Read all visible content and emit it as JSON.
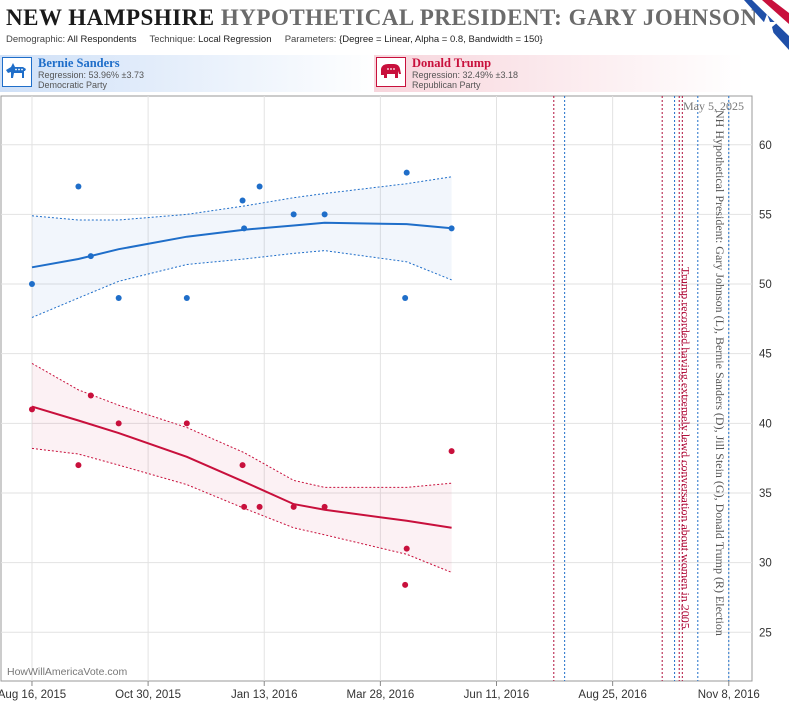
{
  "header": {
    "state": "NEW HAMPSHIRE",
    "subtitle": "HYPOTHETICAL PRESIDENT:  GARY JOHNSON",
    "demographic_label": "Demographic:",
    "demographic_value": "All Respondents",
    "technique_label": "Technique:",
    "technique_value": "Local Regression",
    "parameters_label": "Parameters:",
    "parameters_value": "{Degree = Linear, Alpha = 0.8, Bandwidth = 150}"
  },
  "candidates": [
    {
      "name": "Bernie Sanders",
      "regression": "Regression: 53.96% ±3.73",
      "party": "Democratic Party",
      "color": "#1f6ec9"
    },
    {
      "name": "Donald Trump",
      "regression": "Regression: 32.49% ±3.18",
      "party": "Republican Party",
      "color": "#c8103c"
    }
  ],
  "chart_data": {
    "type": "scatter",
    "date_label": "May 5, 2025",
    "vertical_title": "NH Hypothetical President: Gary Johnson (L), Bernie Sanders (D), Jill Stein (G), Donald Trump (R) Election",
    "event_annotation": "Trump recorded having extremely lewd conversation about women in 2005",
    "watermark": "HowWillAmericaVote.com",
    "x_ticks": [
      "Aug 16, 2015",
      "Oct 30, 2015",
      "Jan 13, 2016",
      "Mar 28, 2016",
      "Jun 11, 2016",
      "Aug 25, 2016",
      "Nov 8, 2016"
    ],
    "x_range": [
      "2015-07-27",
      "2016-11-23"
    ],
    "ylim": [
      21.5,
      63.5
    ],
    "y_ticks": [
      25,
      30,
      35,
      40,
      45,
      50,
      55,
      60
    ],
    "grid": true,
    "vlines": [
      {
        "date": "2016-07-18",
        "color": "#b0103c"
      },
      {
        "date": "2016-07-25",
        "color": "#1f6ec9"
      },
      {
        "date": "2016-09-26",
        "color": "#b0103c"
      },
      {
        "date": "2016-10-04",
        "color": "#1f6ec9"
      },
      {
        "date": "2016-10-07",
        "color": "#b0103c"
      },
      {
        "date": "2016-10-09",
        "color": "#b0103c"
      },
      {
        "date": "2016-10-19",
        "color": "#1f6ec9"
      },
      {
        "date": "2016-11-08",
        "color": "#1f6ec9"
      }
    ],
    "series": [
      {
        "name": "Bernie Sanders",
        "color": "#1f6ec9",
        "points": [
          {
            "x": "2015-08-16",
            "y": 50
          },
          {
            "x": "2015-09-15",
            "y": 57
          },
          {
            "x": "2015-09-23",
            "y": 52
          },
          {
            "x": "2015-10-11",
            "y": 49
          },
          {
            "x": "2015-11-24",
            "y": 49
          },
          {
            "x": "2015-12-30",
            "y": 56
          },
          {
            "x": "2015-12-31",
            "y": 54
          },
          {
            "x": "2016-01-10",
            "y": 57
          },
          {
            "x": "2016-02-01",
            "y": 55
          },
          {
            "x": "2016-02-21",
            "y": 55
          },
          {
            "x": "2016-04-13",
            "y": 49
          },
          {
            "x": "2016-04-14",
            "y": 58
          },
          {
            "x": "2016-05-13",
            "y": 54
          }
        ],
        "fit": [
          {
            "x": "2015-08-16",
            "y": 51.2,
            "lo": 47.6,
            "hi": 54.9
          },
          {
            "x": "2015-09-15",
            "y": 51.8,
            "lo": 49.0,
            "hi": 54.6
          },
          {
            "x": "2015-10-11",
            "y": 52.5,
            "lo": 50.2,
            "hi": 54.6
          },
          {
            "x": "2015-11-24",
            "y": 53.4,
            "lo": 51.4,
            "hi": 55.0
          },
          {
            "x": "2015-12-31",
            "y": 53.9,
            "lo": 51.8,
            "hi": 55.6
          },
          {
            "x": "2016-02-01",
            "y": 54.2,
            "lo": 52.2,
            "hi": 56.2
          },
          {
            "x": "2016-02-21",
            "y": 54.4,
            "lo": 52.4,
            "hi": 56.5
          },
          {
            "x": "2016-04-14",
            "y": 54.3,
            "lo": 51.6,
            "hi": 57.2
          },
          {
            "x": "2016-05-13",
            "y": 54.0,
            "lo": 50.3,
            "hi": 57.7
          }
        ]
      },
      {
        "name": "Donald Trump",
        "color": "#c8103c",
        "points": [
          {
            "x": "2015-08-16",
            "y": 41
          },
          {
            "x": "2015-09-15",
            "y": 37
          },
          {
            "x": "2015-09-23",
            "y": 42
          },
          {
            "x": "2015-10-11",
            "y": 40
          },
          {
            "x": "2015-11-24",
            "y": 40
          },
          {
            "x": "2015-12-30",
            "y": 37
          },
          {
            "x": "2015-12-31",
            "y": 34
          },
          {
            "x": "2016-01-10",
            "y": 34
          },
          {
            "x": "2016-02-01",
            "y": 34
          },
          {
            "x": "2016-02-21",
            "y": 34
          },
          {
            "x": "2016-04-13",
            "y": 28.4
          },
          {
            "x": "2016-04-14",
            "y": 31
          },
          {
            "x": "2016-05-13",
            "y": 38
          }
        ],
        "fit": [
          {
            "x": "2015-08-16",
            "y": 41.2,
            "lo": 38.2,
            "hi": 44.3
          },
          {
            "x": "2015-09-15",
            "y": 40.2,
            "lo": 37.8,
            "hi": 42.4
          },
          {
            "x": "2015-10-11",
            "y": 39.3,
            "lo": 37.0,
            "hi": 41.3
          },
          {
            "x": "2015-11-24",
            "y": 37.6,
            "lo": 35.6,
            "hi": 39.7
          },
          {
            "x": "2015-12-31",
            "y": 35.8,
            "lo": 33.9,
            "hi": 37.9
          },
          {
            "x": "2016-02-01",
            "y": 34.2,
            "lo": 32.5,
            "hi": 35.9
          },
          {
            "x": "2016-02-21",
            "y": 33.8,
            "lo": 32.0,
            "hi": 35.4
          },
          {
            "x": "2016-04-14",
            "y": 33.0,
            "lo": 30.6,
            "hi": 35.4
          },
          {
            "x": "2016-05-13",
            "y": 32.5,
            "lo": 29.3,
            "hi": 35.7
          }
        ]
      }
    ]
  }
}
